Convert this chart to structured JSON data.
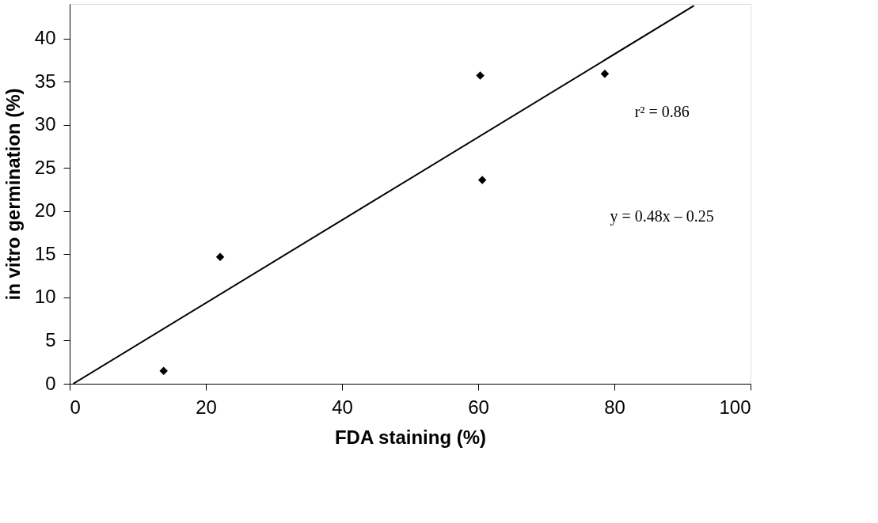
{
  "chart_data": {
    "type": "scatter",
    "xlabel": "FDA staining (%)",
    "ylabel": "in vitro germination (%)",
    "xlim": [
      0,
      100
    ],
    "xticks": [
      0,
      20,
      40,
      60,
      80,
      100
    ],
    "ylim": [
      0,
      44
    ],
    "yticks": [
      0,
      5,
      10,
      15,
      20,
      25,
      30,
      35,
      40
    ],
    "grid": false,
    "marker": "diamond",
    "series": [
      {
        "type": "scatter",
        "color": "#000000",
        "x": [
          13.8,
          22.1,
          60.3,
          60.6,
          78.6
        ],
        "values": [
          1.5,
          14.7,
          35.7,
          23.6,
          35.9
        ]
      },
      {
        "type": "line",
        "color": "#000000",
        "line_style": "solid",
        "marker": "none",
        "x": [
          0.52,
          91.7
        ],
        "values": [
          0,
          43.8
        ]
      }
    ],
    "annotations": [
      "r² = 0.86",
      "y = 0.48x – 0.25"
    ]
  }
}
